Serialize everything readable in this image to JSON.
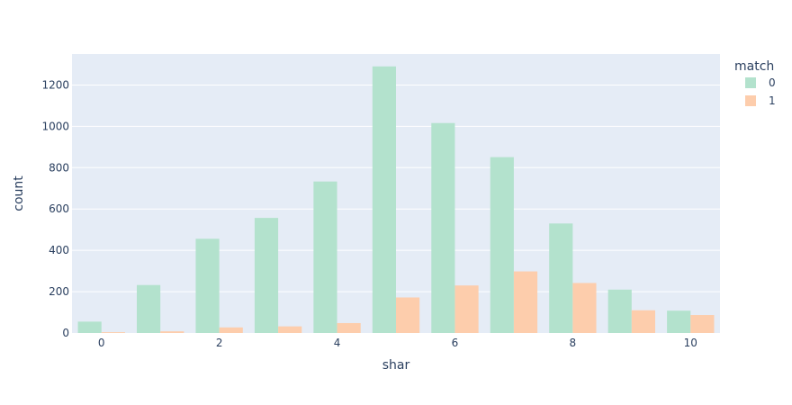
{
  "chart_data": {
    "type": "bar",
    "barmode": "group",
    "xlabel": "shar",
    "ylabel": "count",
    "x": [
      0,
      1,
      2,
      3,
      4,
      5,
      6,
      7,
      8,
      9,
      10
    ],
    "x_ticks": [
      0,
      2,
      4,
      6,
      8,
      10
    ],
    "xlim": [
      -0.5,
      10.5
    ],
    "ylim": [
      0,
      1350
    ],
    "y_ticks": [
      0,
      200,
      400,
      600,
      800,
      1000,
      1200
    ],
    "grid": true,
    "legend": {
      "title": "match",
      "placement": "top-right-outside"
    },
    "series": [
      {
        "name": "0",
        "color": "#b3e2cd",
        "values": [
          55,
          232,
          456,
          557,
          733,
          1290,
          1016,
          851,
          530,
          210,
          108
        ]
      },
      {
        "name": "1",
        "color": "#fdcdac",
        "values": [
          4,
          8,
          27,
          32,
          48,
          172,
          230,
          298,
          242,
          110,
          87
        ]
      }
    ]
  }
}
